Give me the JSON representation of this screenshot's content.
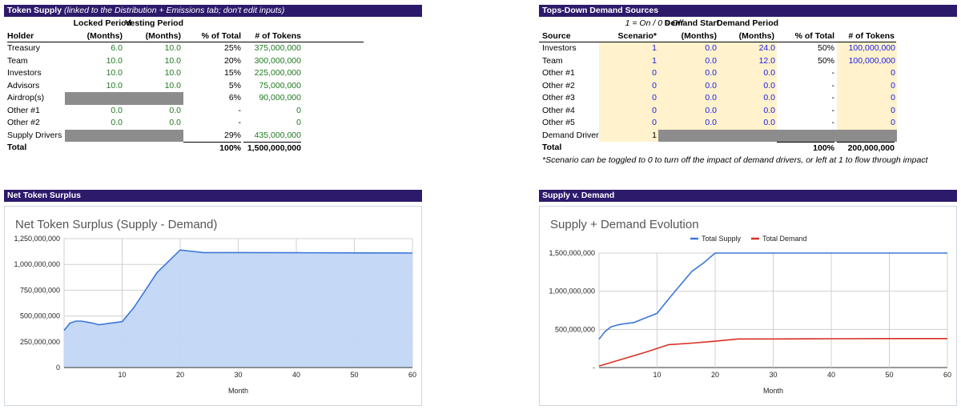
{
  "supply": {
    "header_title": "Token Supply",
    "header_note": "(linked to the Distribution + Emissions tab; don't edit inputs)",
    "col_top": [
      "Locked Period",
      "Vesting Period"
    ],
    "columns": [
      "Holder",
      "(Months)",
      "(Months)",
      "% of Total",
      "# of Tokens"
    ],
    "rows": [
      {
        "holder": "Treasury",
        "locked": "6.0",
        "vesting": "10.0",
        "pct": "25%",
        "tokens": "375,000,000"
      },
      {
        "holder": "Team",
        "locked": "10.0",
        "vesting": "10.0",
        "pct": "20%",
        "tokens": "300,000,000"
      },
      {
        "holder": "Investors",
        "locked": "10.0",
        "vesting": "10.0",
        "pct": "15%",
        "tokens": "225,000,000"
      },
      {
        "holder": "Advisors",
        "locked": "10.0",
        "vesting": "10.0",
        "pct": "5%",
        "tokens": "75,000,000"
      },
      {
        "holder": "Airdrop(s)",
        "locked": "",
        "vesting": "",
        "pct": "6%",
        "tokens": "90,000,000"
      },
      {
        "holder": "Other #1",
        "locked": "0.0",
        "vesting": "0.0",
        "pct": "-",
        "tokens": "0"
      },
      {
        "holder": "Other #2",
        "locked": "0.0",
        "vesting": "0.0",
        "pct": "-",
        "tokens": "0"
      },
      {
        "holder": "Supply Drivers",
        "locked": "",
        "vesting": "",
        "pct": "29%",
        "tokens": "435,000,000"
      }
    ],
    "total": {
      "label": "Total",
      "pct": "100%",
      "tokens": "1,500,000,000"
    }
  },
  "demand": {
    "header_title": "Tops-Down Demand Sources",
    "toggle_note": "1 = On / 0 = Off",
    "col_top": [
      "Demand Start",
      "Demand Period"
    ],
    "columns": [
      "Source",
      "Scenario*",
      "(Months)",
      "(Months)",
      "% of Total",
      "# of Tokens"
    ],
    "rows": [
      {
        "source": "Investors",
        "scenario": "1",
        "start": "0.0",
        "period": "24.0",
        "pct": "50%",
        "tokens": "100,000,000"
      },
      {
        "source": "Team",
        "scenario": "1",
        "start": "0.0",
        "period": "12.0",
        "pct": "50%",
        "tokens": "100,000,000"
      },
      {
        "source": "Other #1",
        "scenario": "0",
        "start": "0.0",
        "period": "0.0",
        "pct": "-",
        "tokens": "0"
      },
      {
        "source": "Other #2",
        "scenario": "0",
        "start": "0.0",
        "period": "0.0",
        "pct": "-",
        "tokens": "0"
      },
      {
        "source": "Other #3",
        "scenario": "0",
        "start": "0.0",
        "period": "0.0",
        "pct": "-",
        "tokens": "0"
      },
      {
        "source": "Other #4",
        "scenario": "0",
        "start": "0.0",
        "period": "0.0",
        "pct": "-",
        "tokens": "0"
      },
      {
        "source": "Other #5",
        "scenario": "0",
        "start": "0.0",
        "period": "0.0",
        "pct": "-",
        "tokens": "0"
      }
    ],
    "drivers": {
      "source": "Demand Drivers",
      "scenario": "1"
    },
    "total": {
      "label": "Total",
      "pct": "100%",
      "tokens": "200,000,000"
    },
    "footnote": "*Scenario can be toggled to 0 to turn off the impact of demand drivers, or left at 1 to flow through impact"
  },
  "surplus_section": {
    "header_title": "Net Token Surplus"
  },
  "svd_section": {
    "header_title": "Supply v. Demand"
  },
  "colors": {
    "header_bg": "#2e1a6b",
    "supply_line": "#3b78d8",
    "demand_line": "#d93025",
    "area_fill": "#c2d6f5"
  },
  "chart_data": [
    {
      "type": "area",
      "title": "Net Token Surplus (Supply - Demand)",
      "xlabel": "Month",
      "ylabel": "",
      "xlim": [
        0,
        60
      ],
      "ylim": [
        0,
        1250000000
      ],
      "xticks": [
        10,
        20,
        30,
        40,
        50,
        60
      ],
      "yticks": [
        0,
        250000000,
        500000000,
        750000000,
        1000000000,
        1250000000
      ],
      "ytick_labels": [
        "0",
        "250,000,000",
        "500,000,000",
        "750,000,000",
        "1,000,000,000",
        "1,250,000,000"
      ],
      "series": [
        {
          "name": "Net Token Surplus",
          "x": [
            0,
            1,
            2,
            3,
            4,
            5,
            6,
            8,
            10,
            12,
            14,
            16,
            18,
            20,
            24,
            30,
            40,
            50,
            60
          ],
          "values": [
            360000000,
            430000000,
            450000000,
            450000000,
            440000000,
            430000000,
            415000000,
            430000000,
            445000000,
            580000000,
            750000000,
            920000000,
            1030000000,
            1140000000,
            1115000000,
            1115000000,
            1113000000,
            1112000000,
            1110000000
          ]
        }
      ]
    },
    {
      "type": "line",
      "title": "Supply + Demand Evolution",
      "xlabel": "Month",
      "ylabel": "",
      "xlim": [
        0,
        60
      ],
      "ylim": [
        0,
        1500000000
      ],
      "xticks": [
        10,
        20,
        30,
        40,
        50,
        60
      ],
      "yticks": [
        0,
        500000000,
        1000000000,
        1500000000
      ],
      "ytick_labels": [
        "-",
        "500,000,000",
        "1,000,000,000",
        "1,500,000,000"
      ],
      "legend": "top",
      "series": [
        {
          "name": "Total Supply",
          "x": [
            0,
            1,
            2,
            3,
            4,
            5,
            6,
            8,
            10,
            12,
            14,
            16,
            18,
            20,
            30,
            40,
            50,
            60
          ],
          "values": [
            370000000,
            470000000,
            530000000,
            555000000,
            570000000,
            580000000,
            590000000,
            650000000,
            710000000,
            900000000,
            1080000000,
            1260000000,
            1370000000,
            1500000000,
            1500000000,
            1500000000,
            1500000000,
            1500000000
          ]
        },
        {
          "name": "Total Demand",
          "x": [
            0,
            4,
            8,
            12,
            16,
            20,
            24,
            30,
            40,
            50,
            60
          ],
          "values": [
            20000000,
            110000000,
            200000000,
            300000000,
            320000000,
            345000000,
            375000000,
            375000000,
            378000000,
            380000000,
            380000000
          ]
        }
      ]
    }
  ]
}
